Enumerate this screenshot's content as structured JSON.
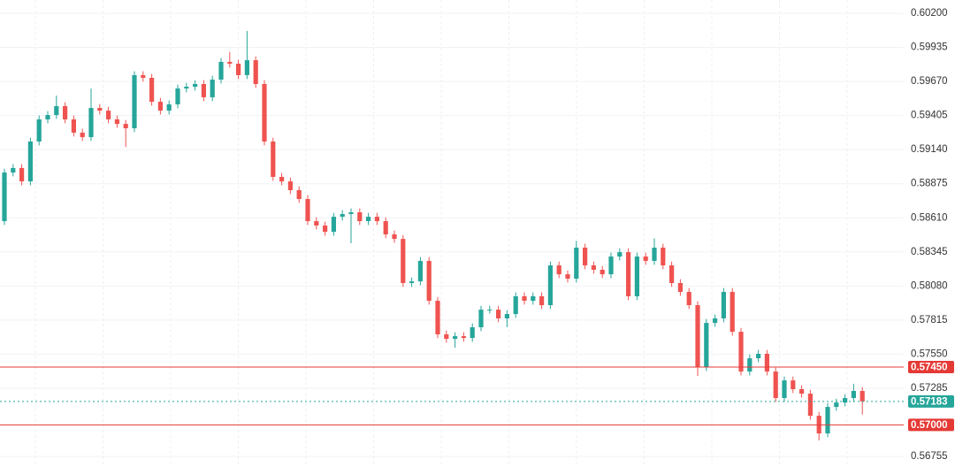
{
  "chart_data": {
    "type": "candlestick",
    "up_color": "#26a69a",
    "down_color": "#ef5350",
    "grid": true,
    "ylim": [
      0.56673,
      0.60303
    ],
    "yticks": [
      {
        "value": 0.602,
        "label": "0.60200"
      },
      {
        "value": 0.59935,
        "label": "0.59935"
      },
      {
        "value": 0.5967,
        "label": "0.59670"
      },
      {
        "value": 0.59405,
        "label": "0.59405"
      },
      {
        "value": 0.5914,
        "label": "0.59140"
      },
      {
        "value": 0.58875,
        "label": "0.58875"
      },
      {
        "value": 0.5861,
        "label": "0.58610"
      },
      {
        "value": 0.58345,
        "label": "0.58345"
      },
      {
        "value": 0.5808,
        "label": "0.58080"
      },
      {
        "value": 0.57815,
        "label": "0.57815"
      },
      {
        "value": 0.5755,
        "label": "0.57550"
      },
      {
        "value": 0.57285,
        "label": "0.57285"
      },
      {
        "value": 0.56755,
        "label": "0.56755"
      }
    ],
    "hlines": [
      {
        "value": 0.5745,
        "label": "0.57450",
        "color": "#e53935",
        "style": "solid"
      },
      {
        "value": 0.57183,
        "label": "0.57183",
        "color": "#26a69a",
        "style": "dotted"
      },
      {
        "value": 0.57,
        "label": "0.57000",
        "color": "#e53935",
        "style": "solid"
      }
    ],
    "open": [
      0.58584,
      0.58962,
      0.58997,
      0.58893,
      0.59203,
      0.59375,
      0.59409,
      0.59478,
      0.59375,
      0.59272,
      0.59237,
      0.59464,
      0.59443,
      0.59375,
      0.5934,
      0.59306,
      0.59719,
      0.59698,
      0.59512,
      0.59443,
      0.59492,
      0.59615,
      0.59629,
      0.5965,
      0.59547,
      0.59684,
      0.59822,
      0.59808,
      0.59719,
      0.59835,
      0.5965,
      0.59203,
      0.58928,
      0.58893,
      0.58825,
      0.58756,
      0.58584,
      0.5855,
      0.58501,
      0.58618,
      0.58639,
      0.58653,
      0.58584,
      0.58618,
      0.58584,
      0.58481,
      0.58446,
      0.58103,
      0.58116,
      0.58275,
      0.57965,
      0.57704,
      0.57669,
      0.5769,
      0.57676,
      0.57759,
      0.57896,
      0.57896,
      0.57828,
      0.57862,
      0.58,
      0.57965,
      0.58,
      0.57931,
      0.5824,
      0.58171,
      0.58137,
      0.58378,
      0.5824,
      0.58206,
      0.58171,
      0.58309,
      0.58343,
      0.58,
      0.58309,
      0.58275,
      0.58378,
      0.5824,
      0.58103,
      0.58034,
      0.57931,
      0.57449,
      0.57793,
      0.57828,
      0.58034,
      0.57724,
      0.57415,
      0.57518,
      0.57553,
      0.57415,
      0.57209,
      0.57346,
      0.57278,
      0.57243,
      0.57071,
      0.56934,
      0.5714,
      0.57174,
      0.57209,
      0.57264
    ],
    "high": [
      0.58992,
      0.59027,
      0.59027,
      0.59233,
      0.59405,
      0.59439,
      0.5956,
      0.59508,
      0.59405,
      0.59302,
      0.59615,
      0.59494,
      0.59473,
      0.59405,
      0.5937,
      0.59749,
      0.59749,
      0.59728,
      0.59542,
      0.59522,
      0.59645,
      0.59659,
      0.5968,
      0.5968,
      0.59714,
      0.59852,
      0.599,
      0.59838,
      0.60062,
      0.59865,
      0.5968,
      0.59233,
      0.58958,
      0.58923,
      0.58855,
      0.58786,
      0.58614,
      0.5858,
      0.58648,
      0.58669,
      0.58683,
      0.58683,
      0.58648,
      0.58648,
      0.58614,
      0.58511,
      0.58476,
      0.58146,
      0.58305,
      0.58305,
      0.57995,
      0.57734,
      0.5772,
      0.5772,
      0.57789,
      0.57926,
      0.57926,
      0.57926,
      0.57892,
      0.5803,
      0.5803,
      0.5803,
      0.5803,
      0.5827,
      0.5827,
      0.58201,
      0.5843,
      0.58408,
      0.5827,
      0.58236,
      0.58339,
      0.58373,
      0.58373,
      0.58339,
      0.58339,
      0.5845,
      0.58408,
      0.5827,
      0.58133,
      0.58064,
      0.57961,
      0.57823,
      0.57858,
      0.58064,
      0.58064,
      0.57754,
      0.57548,
      0.57583,
      0.57583,
      0.57445,
      0.57376,
      0.57376,
      0.57308,
      0.57273,
      0.57101,
      0.5717,
      0.57204,
      0.57239,
      0.5732,
      0.57294
    ],
    "low": [
      0.58554,
      0.58932,
      0.58863,
      0.58863,
      0.59173,
      0.59345,
      0.59379,
      0.59345,
      0.59242,
      0.59207,
      0.59207,
      0.59413,
      0.59345,
      0.5931,
      0.5916,
      0.59276,
      0.59668,
      0.59482,
      0.59413,
      0.59413,
      0.59462,
      0.59585,
      0.59599,
      0.59517,
      0.59517,
      0.59654,
      0.59778,
      0.59689,
      0.59689,
      0.5962,
      0.59173,
      0.58898,
      0.58863,
      0.58795,
      0.58726,
      0.58554,
      0.5852,
      0.58471,
      0.58471,
      0.58588,
      0.58412,
      0.58554,
      0.58554,
      0.58554,
      0.58451,
      0.58416,
      0.58073,
      0.58073,
      0.58086,
      0.57935,
      0.57674,
      0.57639,
      0.576,
      0.57646,
      0.57646,
      0.57729,
      0.57866,
      0.57798,
      0.5776,
      0.57832,
      0.57935,
      0.57935,
      0.57901,
      0.57901,
      0.58141,
      0.58107,
      0.58107,
      0.5821,
      0.58176,
      0.58141,
      0.58141,
      0.58279,
      0.5797,
      0.5797,
      0.58245,
      0.58245,
      0.5821,
      0.58073,
      0.58004,
      0.57901,
      0.5738,
      0.57419,
      0.57763,
      0.57798,
      0.57694,
      0.57385,
      0.57385,
      0.57488,
      0.57385,
      0.57179,
      0.57179,
      0.57248,
      0.57213,
      0.57041,
      0.5688,
      0.56904,
      0.5711,
      0.57144,
      0.57179,
      0.5708
    ],
    "close": [
      0.58962,
      0.58997,
      0.58893,
      0.59203,
      0.59375,
      0.59409,
      0.59478,
      0.59375,
      0.59272,
      0.59237,
      0.59464,
      0.59443,
      0.59375,
      0.5934,
      0.59306,
      0.59719,
      0.59698,
      0.59512,
      0.59443,
      0.59492,
      0.59615,
      0.59629,
      0.5965,
      0.59547,
      0.59684,
      0.59822,
      0.59808,
      0.59719,
      0.59835,
      0.5965,
      0.59203,
      0.58928,
      0.58893,
      0.58825,
      0.58756,
      0.58584,
      0.5855,
      0.58501,
      0.58618,
      0.58639,
      0.58653,
      0.58584,
      0.58618,
      0.58584,
      0.58481,
      0.58446,
      0.58103,
      0.58116,
      0.58275,
      0.57965,
      0.57704,
      0.57669,
      0.5769,
      0.57676,
      0.57759,
      0.57896,
      0.57896,
      0.57828,
      0.57862,
      0.58,
      0.57965,
      0.58,
      0.57931,
      0.5824,
      0.58171,
      0.58137,
      0.58378,
      0.5824,
      0.58206,
      0.58171,
      0.58309,
      0.58343,
      0.58,
      0.58309,
      0.58275,
      0.58378,
      0.5824,
      0.58103,
      0.58034,
      0.57931,
      0.57449,
      0.57793,
      0.57828,
      0.58034,
      0.57724,
      0.57415,
      0.57518,
      0.57553,
      0.57415,
      0.57209,
      0.57346,
      0.57278,
      0.57243,
      0.57071,
      0.56934,
      0.5714,
      0.57174,
      0.57209,
      0.57264,
      0.57183
    ]
  }
}
